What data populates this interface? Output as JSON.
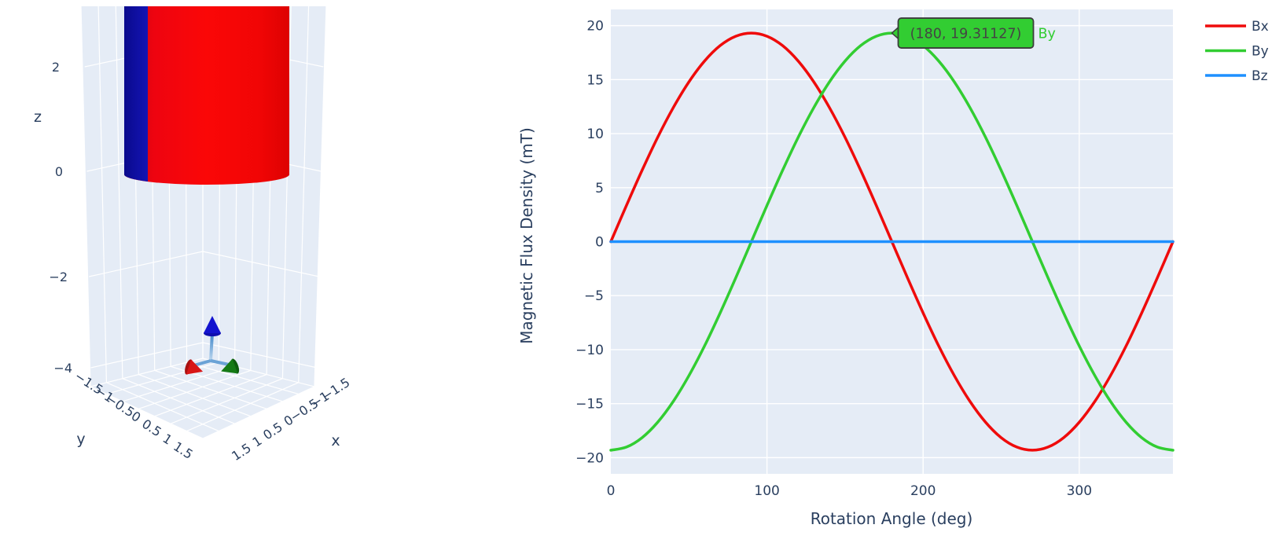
{
  "scene3d": {
    "axis_titles": {
      "x": "x",
      "y": "y",
      "z": "z"
    },
    "z_ticks": [
      "2",
      "0",
      "−2",
      "−4"
    ],
    "y_ticks": [
      "−1.5",
      "−1",
      "−0.5",
      "0",
      "0.5",
      "1",
      "1.5"
    ],
    "x_ticks": [
      "−1.5",
      "−1",
      "−0.5",
      "0",
      "0.5",
      "1",
      "1.5"
    ],
    "wall_color": "#E5ECF6",
    "grid_color": "#ffffff",
    "magnet": {
      "north_color": "#f10505",
      "north_dark": "#c40010",
      "south_color": "#0b0b9c"
    },
    "triad": {
      "up_cone_color": "#1414cf",
      "left_cone_color": "#d81616",
      "right_cone_color": "#157a15",
      "shaft_color": "#5f9fd8"
    }
  },
  "chart_data": {
    "type": "line",
    "title": "",
    "xlabel": "Rotation Angle (deg)",
    "ylabel": "Magnetic Flux Density (mT)",
    "x_ticks": [
      0,
      100,
      200,
      300
    ],
    "y_ticks": [
      20,
      15,
      10,
      5,
      0,
      -5,
      -10,
      -15,
      -20
    ],
    "x_range": [
      0,
      360
    ],
    "y_range": [
      -21.5,
      21.5
    ],
    "x_step": 10,
    "plot_bg": "#E5ECF6",
    "grid_color": "#ffffff",
    "series": [
      {
        "name": "Bx",
        "color": "#ef0b0b",
        "values": [
          0,
          3.35,
          6.6,
          9.66,
          12.41,
          14.79,
          16.72,
          18.15,
          19.02,
          19.31,
          19.02,
          18.15,
          16.72,
          14.79,
          12.41,
          9.66,
          6.6,
          3.35,
          0,
          -3.35,
          -6.6,
          -9.66,
          -12.41,
          -14.79,
          -16.72,
          -18.15,
          -19.02,
          -19.31,
          -19.02,
          -18.15,
          -16.72,
          -14.79,
          -12.41,
          -9.66,
          -6.6,
          -3.35,
          0
        ]
      },
      {
        "name": "By",
        "color": "#32cd32",
        "values": [
          -19.31,
          -19.02,
          -18.15,
          -16.72,
          -14.79,
          -12.41,
          -9.66,
          -6.6,
          -3.35,
          0,
          3.35,
          6.6,
          9.66,
          12.41,
          14.79,
          16.72,
          18.15,
          19.02,
          19.31,
          19.02,
          18.15,
          16.72,
          14.79,
          12.41,
          9.66,
          6.6,
          3.35,
          0,
          -3.35,
          -6.6,
          -9.66,
          -12.41,
          -14.79,
          -16.72,
          -18.15,
          -19.02,
          -19.31
        ]
      },
      {
        "name": "Bz",
        "color": "#1e90ff",
        "values": [
          0,
          0,
          0,
          0,
          0,
          0,
          0,
          0,
          0,
          0,
          0,
          0,
          0,
          0,
          0,
          0,
          0,
          0,
          0,
          0,
          0,
          0,
          0,
          0,
          0,
          0,
          0,
          0,
          0,
          0,
          0,
          0,
          0,
          0,
          0,
          0,
          0
        ]
      }
    ],
    "hover": {
      "x": 180,
      "y": 19.31127,
      "label": "(180, 19.31127)",
      "series": "By",
      "bg": "#32cd32",
      "border": "#3c3c3c",
      "text_color": "#444444"
    }
  },
  "legend": {
    "items": [
      {
        "label": "Bx",
        "color": "#ef0b0b"
      },
      {
        "label": "By",
        "color": "#32cd32"
      },
      {
        "label": "Bz",
        "color": "#1e90ff"
      }
    ]
  }
}
